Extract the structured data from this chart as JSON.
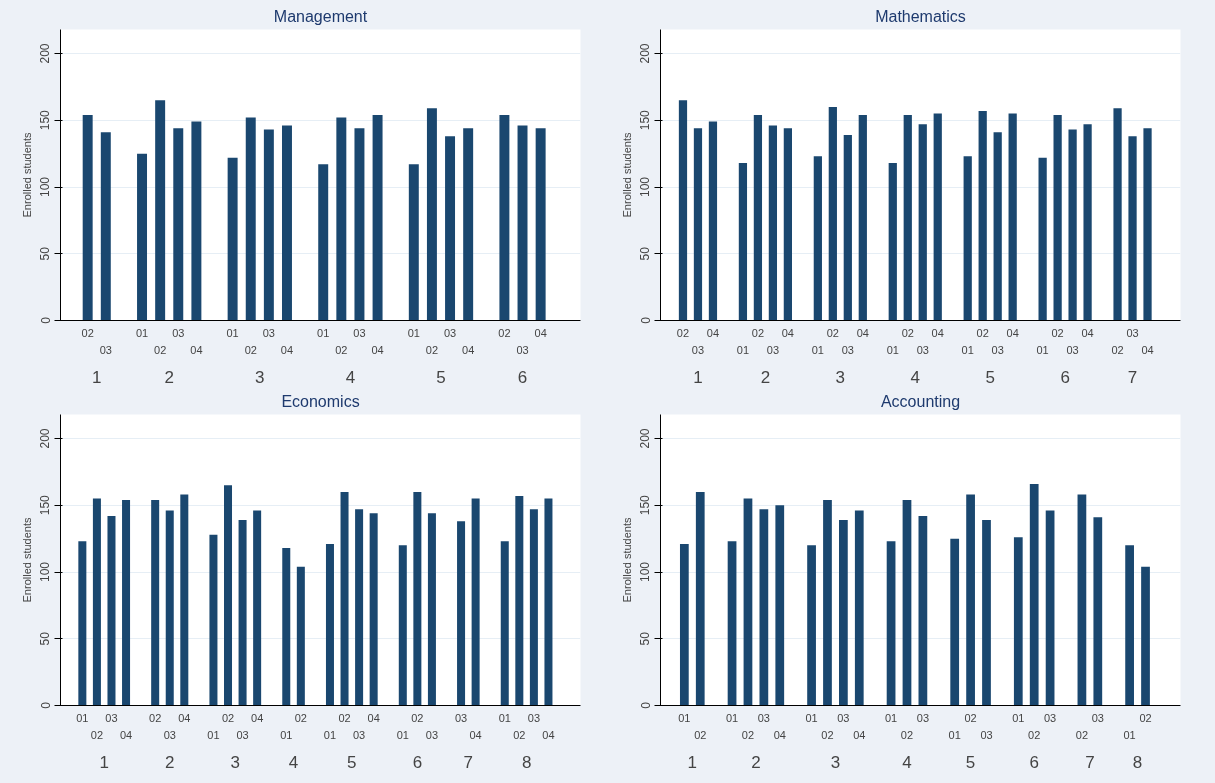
{
  "chart_data": [
    {
      "type": "bar",
      "title": "Management",
      "ylabel": "Enrolled students",
      "color": "#1a476f",
      "ylim": [
        0,
        218
      ],
      "yticks": [
        0,
        50,
        100,
        150,
        200
      ],
      "grid": "y",
      "categories": [
        "02",
        "03",
        null,
        "01",
        "02",
        "03",
        "04",
        null,
        "01",
        "02",
        "03",
        "04",
        null,
        "01",
        "02",
        "03",
        "04",
        null,
        "01",
        "02",
        "03",
        "04",
        null,
        "02",
        "03",
        "04"
      ],
      "values": [
        154,
        141,
        null,
        125,
        165,
        144,
        149,
        null,
        122,
        152,
        143,
        146,
        null,
        117,
        152,
        144,
        154,
        null,
        117,
        159,
        138,
        144,
        null,
        154,
        146,
        144
      ],
      "annotations": [
        "1",
        "2",
        "3",
        "4",
        "5",
        "6"
      ]
    },
    {
      "type": "bar",
      "title": "Mathematics",
      "ylabel": "Enrolled students",
      "color": "#1a476f",
      "ylim": [
        0,
        218
      ],
      "yticks": [
        0,
        50,
        100,
        150,
        200
      ],
      "grid": "y",
      "categories": [
        "02",
        "03",
        "04",
        null,
        "01",
        "02",
        "03",
        "04",
        null,
        "01",
        "02",
        "03",
        "04",
        null,
        "01",
        "02",
        "03",
        "04",
        null,
        "01",
        "02",
        "03",
        "04",
        null,
        "01",
        "02",
        "03",
        "04",
        null,
        "02",
        "03",
        "04"
      ],
      "values": [
        165,
        144,
        149,
        null,
        118,
        154,
        146,
        144,
        null,
        123,
        160,
        139,
        154,
        null,
        118,
        154,
        147,
        155,
        null,
        123,
        157,
        141,
        155,
        null,
        122,
        154,
        143,
        147,
        null,
        159,
        138,
        144
      ],
      "annotations": [
        "1",
        "2",
        "3",
        "4",
        "5",
        "6",
        "7"
      ]
    },
    {
      "type": "bar",
      "title": "Economics",
      "ylabel": "Enrolled students",
      "color": "#1a476f",
      "ylim": [
        0,
        218
      ],
      "yticks": [
        0,
        50,
        100,
        150,
        200
      ],
      "grid": "y",
      "categories": [
        "01",
        "02",
        "03",
        "04",
        null,
        "02",
        "03",
        "04",
        null,
        "01",
        "02",
        "03",
        "04",
        null,
        "01",
        "02",
        null,
        "01",
        "02",
        "03",
        "04",
        null,
        "01",
        "02",
        "03",
        null,
        "03",
        "04",
        null,
        "01",
        "02",
        "03",
        "04"
      ],
      "values": [
        123,
        155,
        142,
        154,
        null,
        154,
        146,
        158,
        null,
        128,
        165,
        139,
        146,
        null,
        118,
        104,
        null,
        121,
        160,
        147,
        144,
        null,
        120,
        160,
        144,
        null,
        138,
        155,
        null,
        123,
        157,
        147,
        155
      ],
      "annotations": [
        "1",
        "2",
        "3",
        "4",
        "5",
        "6",
        "7",
        "8"
      ]
    },
    {
      "type": "bar",
      "title": "Accounting",
      "ylabel": "Enrolled students",
      "color": "#1a476f",
      "ylim": [
        0,
        218
      ],
      "yticks": [
        0,
        50,
        100,
        150,
        200
      ],
      "grid": "y",
      "categories": [
        "01",
        "02",
        null,
        "01",
        "02",
        "03",
        "04",
        null,
        "01",
        "02",
        "03",
        "04",
        null,
        "01",
        "02",
        "03",
        null,
        "01",
        "02",
        "03",
        null,
        "01",
        "02",
        "03",
        null,
        "02",
        "03",
        null,
        "01",
        "02"
      ],
      "values": [
        121,
        160,
        null,
        123,
        155,
        147,
        150,
        null,
        120,
        154,
        139,
        146,
        null,
        123,
        154,
        142,
        null,
        125,
        158,
        139,
        null,
        126,
        166,
        146,
        null,
        158,
        141,
        null,
        120,
        104
      ],
      "annotations": [
        "1",
        "2",
        "3",
        "4",
        "5",
        "6",
        "7",
        "8"
      ]
    }
  ]
}
